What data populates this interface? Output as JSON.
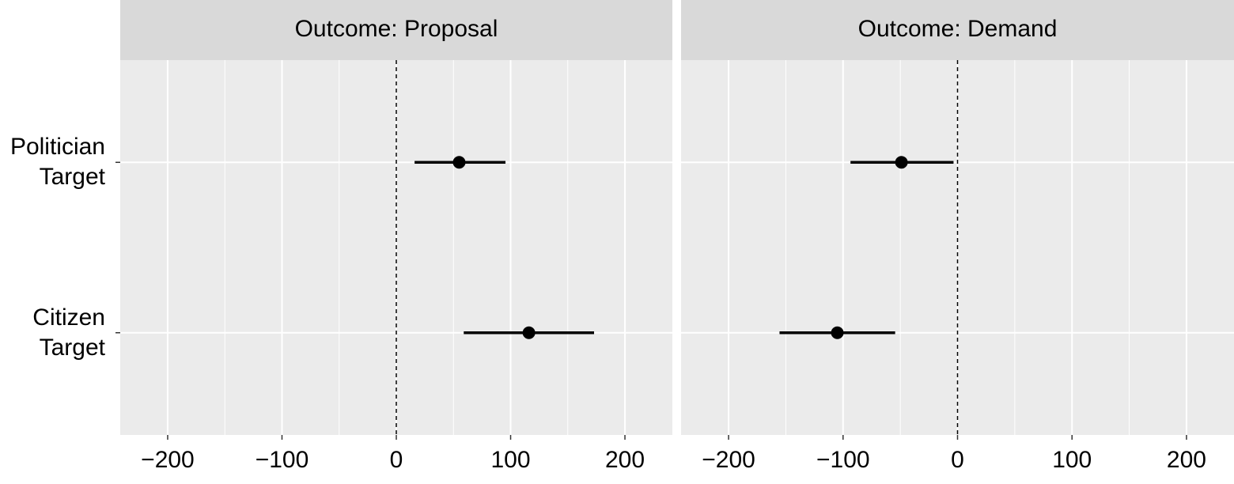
{
  "chart_data": {
    "type": "pointrange",
    "categories": [
      "Politician\nTarget",
      "Citizen\nTarget"
    ],
    "xlim": [
      -241.5,
      241.5
    ],
    "xticks": [
      {
        "value": -200,
        "label": "−200"
      },
      {
        "value": -100,
        "label": "−100"
      },
      0,
      100,
      200
    ],
    "minor_xticks": [
      -150,
      -50,
      50,
      150
    ],
    "reference_line": 0,
    "grid": true,
    "color": "#000000",
    "panels": [
      {
        "title": "Outcome: Proposal",
        "values": [
          55,
          116
        ],
        "lower": [
          16,
          59
        ],
        "upper": [
          95.5,
          173
        ]
      },
      {
        "title": "Outcome: Demand",
        "values": [
          -49,
          -105
        ],
        "lower": [
          -93.5,
          -155.5
        ],
        "upper": [
          -3.5,
          -54.5
        ]
      }
    ]
  }
}
